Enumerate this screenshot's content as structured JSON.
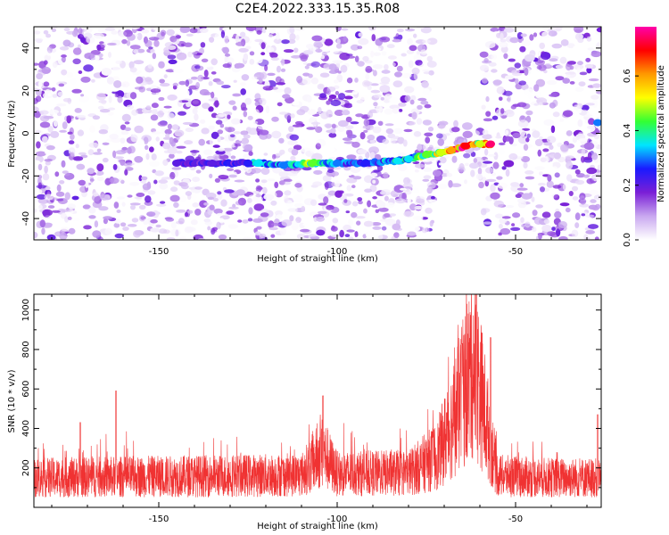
{
  "title": "C2E4.2022.333.15.35.R08",
  "chart_data": [
    {
      "type": "heatmap",
      "xlabel": "Height of straight line (km)",
      "ylabel": "Frequency (Hz)",
      "xlim": [
        -185,
        -26
      ],
      "ylim": [
        -50,
        50
      ],
      "x_ticks": [
        -150,
        -100,
        -50
      ],
      "y_ticks": [
        -40,
        -20,
        0,
        20,
        40
      ],
      "colorbar": {
        "label": "Normalized spectral amplitude",
        "range": [
          0,
          0.78
        ],
        "ticks": [
          0.0,
          0.2,
          0.4,
          0.6
        ],
        "colormap": [
          "#ffffff",
          "#c9a8f0",
          "#7a1fd6",
          "#1a1aff",
          "#00e5ff",
          "#33ff33",
          "#ffff00",
          "#ff9900",
          "#ff0000",
          "#ff00aa"
        ]
      },
      "background_noise_amplitude": [
        0.0,
        0.2
      ],
      "ridge": [
        {
          "x": -145,
          "y": -14,
          "a": 0.2
        },
        {
          "x": -135,
          "y": -14,
          "a": 0.2
        },
        {
          "x": -125,
          "y": -14,
          "a": 0.25
        },
        {
          "x": -122,
          "y": -14,
          "a": 0.35
        },
        {
          "x": -115,
          "y": -15,
          "a": 0.3
        },
        {
          "x": -107,
          "y": -14,
          "a": 0.45
        },
        {
          "x": -100,
          "y": -14,
          "a": 0.3
        },
        {
          "x": -92,
          "y": -14,
          "a": 0.25
        },
        {
          "x": -83,
          "y": -13,
          "a": 0.35
        },
        {
          "x": -80,
          "y": -12,
          "a": 0.35
        },
        {
          "x": -75,
          "y": -10,
          "a": 0.45
        },
        {
          "x": -71,
          "y": -9,
          "a": 0.5
        },
        {
          "x": -68,
          "y": -8,
          "a": 0.6
        },
        {
          "x": -64,
          "y": -6,
          "a": 0.7
        },
        {
          "x": -60,
          "y": -5,
          "a": 0.5
        },
        {
          "x": -57,
          "y": -5,
          "a": 0.75
        },
        {
          "x": -27,
          "y": 5,
          "a": 0.3
        }
      ],
      "gap_regions": [
        [
          -73,
          -59
        ]
      ]
    },
    {
      "type": "line",
      "xlabel": "Height of straight line (km)",
      "ylabel": "SNR (10 * v/v)",
      "xlim": [
        -185,
        -26
      ],
      "ylim": [
        0,
        1080
      ],
      "x_ticks": [
        -150,
        -100,
        -50
      ],
      "y_ticks": [
        200,
        400,
        600,
        800,
        1000
      ],
      "color": "#f03232",
      "baseline_mean": 160,
      "profile": [
        {
          "x": -185,
          "y": 150
        },
        {
          "x": -160,
          "y": 155
        },
        {
          "x": -130,
          "y": 160
        },
        {
          "x": -110,
          "y": 165
        },
        {
          "x": -104,
          "y": 280
        },
        {
          "x": -100,
          "y": 170
        },
        {
          "x": -80,
          "y": 175
        },
        {
          "x": -72,
          "y": 260
        },
        {
          "x": -68,
          "y": 420
        },
        {
          "x": -65,
          "y": 560
        },
        {
          "x": -62,
          "y": 720
        },
        {
          "x": -60,
          "y": 600
        },
        {
          "x": -58,
          "y": 420
        },
        {
          "x": -55,
          "y": 160
        },
        {
          "x": -40,
          "y": 150
        },
        {
          "x": -26,
          "y": 150
        }
      ],
      "peaks": [
        {
          "x": -172,
          "y": 430
        },
        {
          "x": -162,
          "y": 590
        },
        {
          "x": -104,
          "y": 565
        },
        {
          "x": -65,
          "y": 830
        },
        {
          "x": -61,
          "y": 1080
        },
        {
          "x": -57,
          "y": 860
        },
        {
          "x": -27,
          "y": 470
        }
      ]
    }
  ]
}
